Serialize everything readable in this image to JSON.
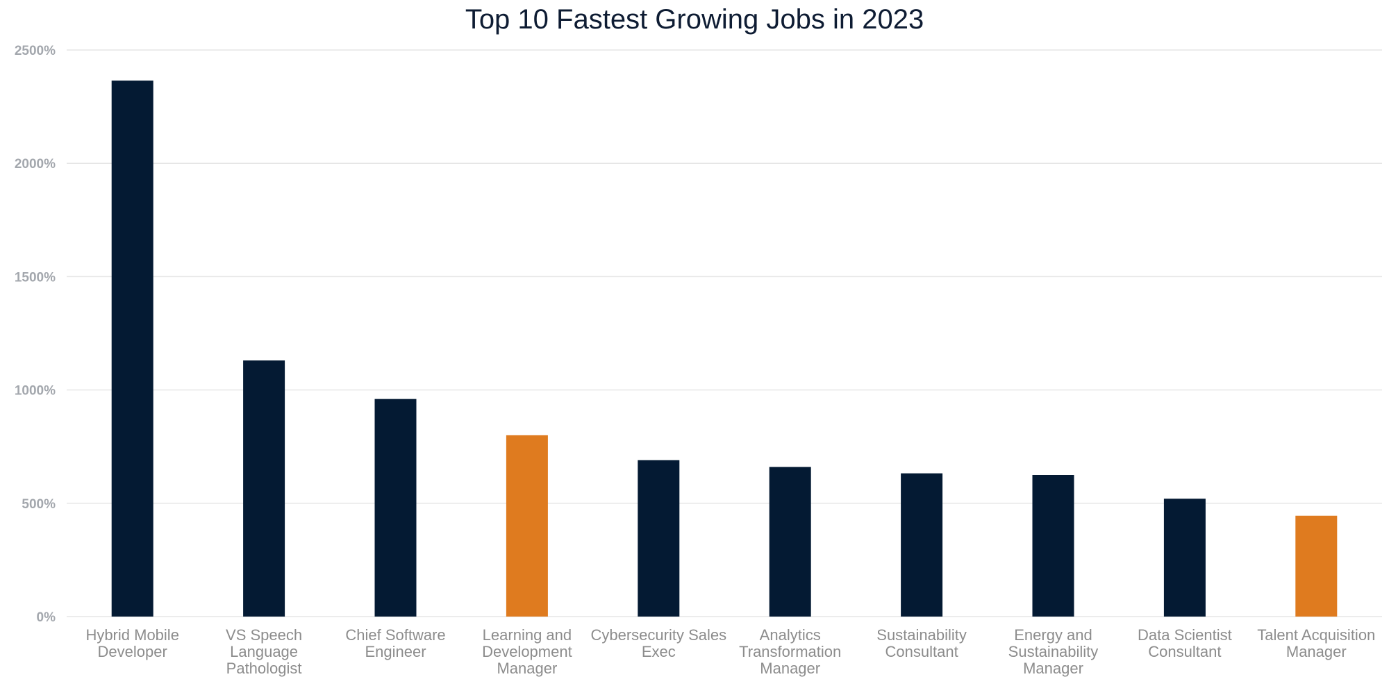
{
  "chart_data": {
    "type": "bar",
    "title": "Top 10 Fastest Growing Jobs in 2023",
    "xlabel": "",
    "ylabel": "",
    "ylim": [
      0,
      2500
    ],
    "y_tick_values": [
      0,
      500,
      1000,
      1500,
      2000,
      2500
    ],
    "y_tick_labels": [
      "0%",
      "500%",
      "1000%",
      "1500%",
      "2000%",
      "2500%"
    ],
    "grid": true,
    "legend": "none",
    "categories": [
      "Hybrid Mobile Developer",
      "VS Speech Language Pathologist",
      "Chief Software Engineer",
      "Learning and Development Manager",
      "Cybersecurity Sales Exec",
      "Analytics Transformation Manager",
      "Sustainability Consultant",
      "Energy and Sustainability Manager",
      "Data Scientist Consultant",
      "Talent Acquisition Manager"
    ],
    "category_label_lines": [
      [
        "Hybrid Mobile",
        "Developer"
      ],
      [
        "VS Speech",
        "Language",
        "Pathologist"
      ],
      [
        "Chief Software",
        "Engineer"
      ],
      [
        "Learning and",
        "Development",
        "Manager"
      ],
      [
        "Cybersecurity Sales",
        "Exec"
      ],
      [
        "Analytics",
        "Transformation",
        "Manager"
      ],
      [
        "Sustainability",
        "Consultant"
      ],
      [
        "Energy and",
        "Sustainability",
        "Manager"
      ],
      [
        "Data Scientist",
        "Consultant"
      ],
      [
        "Talent Acquisition",
        "Manager"
      ]
    ],
    "values": [
      2365,
      1130,
      960,
      800,
      690,
      660,
      632,
      625,
      520,
      445
    ],
    "colors": {
      "default": "#041a33",
      "highlight": "#df7b1f",
      "grid": "#e6e6e6",
      "title": "#0e1c33"
    },
    "highlighted_indices": [
      3,
      9
    ]
  }
}
